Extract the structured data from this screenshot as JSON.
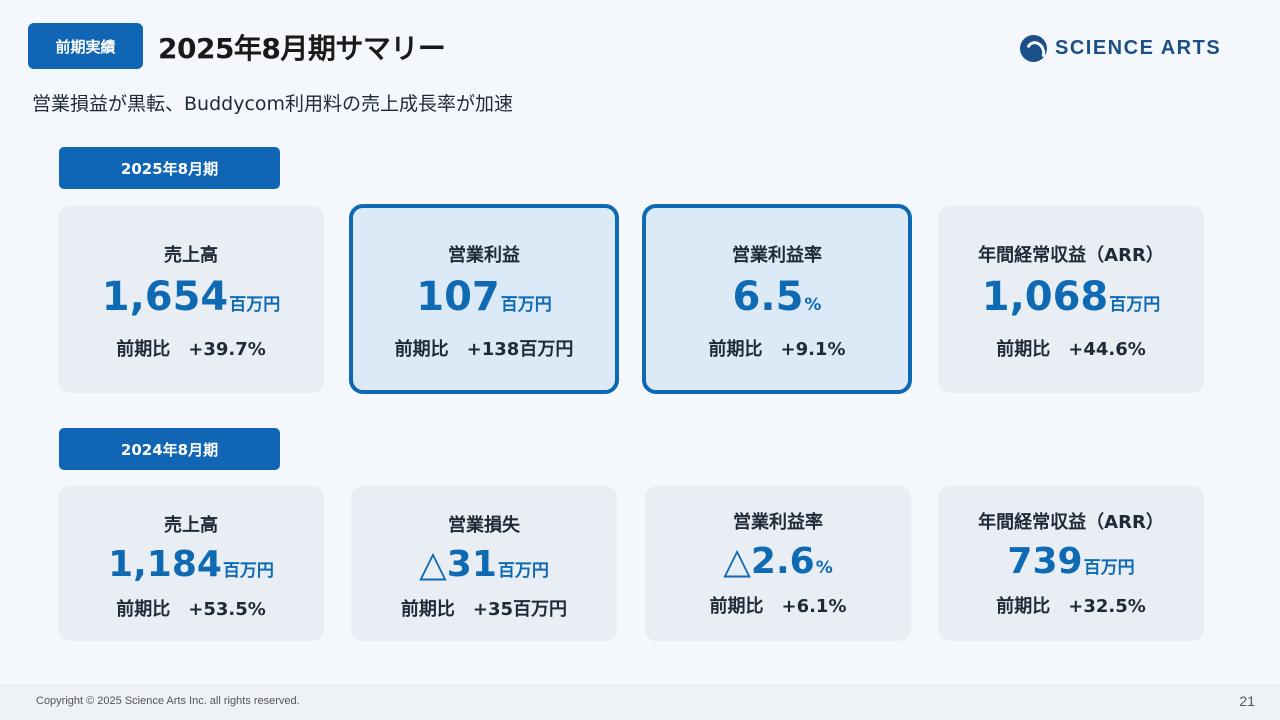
{
  "header": {
    "tag": "前期実績",
    "title": "2025年8月期サマリー",
    "logo_text": "SCIENCE ARTS",
    "logo_icon": "science-arts-logo-icon"
  },
  "subtitle": "営業損益が黒転、Buddycom利用料の売上成長率が加速",
  "fy2025": {
    "period_label": "2025年8月期",
    "cards": [
      {
        "label": "売上高",
        "value": "1,654",
        "unit": "百万円",
        "comparison": "前期比　+39.7%"
      },
      {
        "label": "営業利益",
        "value": "107",
        "unit": "百万円",
        "comparison": "前期比　+138百万円"
      },
      {
        "label": "営業利益率",
        "value": "6.5",
        "unit": "%",
        "comparison": "前期比　+9.1%"
      },
      {
        "label": "年間経常収益（ARR）",
        "value": "1,068",
        "unit": "百万円",
        "comparison": "前期比　+44.6%"
      }
    ]
  },
  "fy2024": {
    "period_label": "2024年8月期",
    "cards": [
      {
        "label": "売上高",
        "value": "1,184",
        "unit": "百万円",
        "comparison": "前期比　+53.5%"
      },
      {
        "label": "営業損失",
        "value": "△31",
        "unit": "百万円",
        "comparison": "前期比　+35百万円"
      },
      {
        "label": "営業利益率",
        "value": "△2.6",
        "unit": "%",
        "comparison": "前期比　+6.1%"
      },
      {
        "label": "年間経常収益（ARR）",
        "value": "739",
        "unit": "百万円",
        "comparison": "前期比　+32.5%"
      }
    ]
  },
  "footer": {
    "copyright": "Copyright © 2025 Science Arts Inc. all rights reserved.",
    "page_number": "21"
  },
  "colors": {
    "accent": "#1065b5",
    "value": "#0f6ab4",
    "card_bg": "#e9eef5",
    "highlight_bg": "#dce9f7"
  }
}
